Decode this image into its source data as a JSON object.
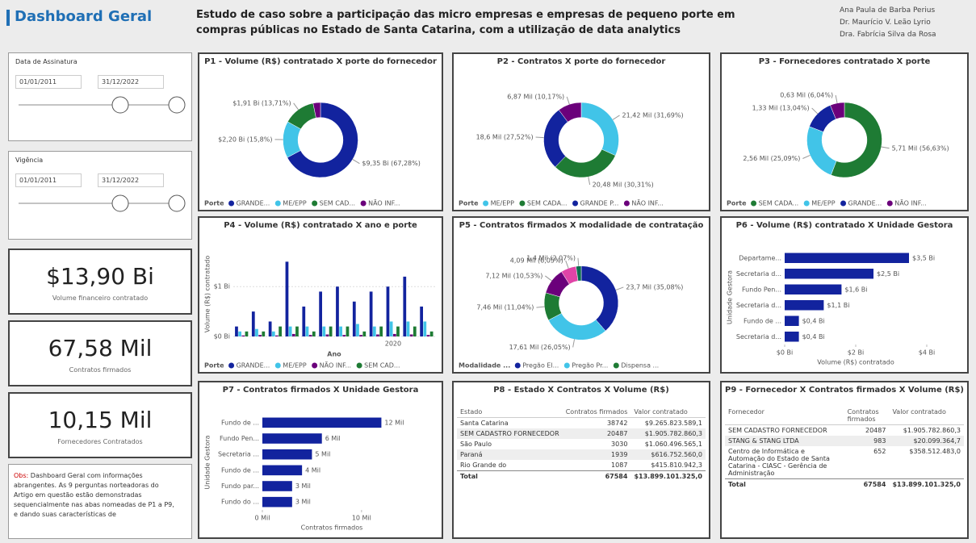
{
  "header": {
    "title": "Dashboard Geral",
    "subtitle": "Estudo de caso sobre a participação das micro empresas e empresas de pequeno porte em compras públicas no Estado de Santa Catarina, com a utilização de data analytics",
    "authors": [
      "Ana Paula de Barba Perius",
      "Dr. Maurício V. Leão Lyrio",
      "Dra. Fabrícia Silva da Rosa"
    ]
  },
  "slicers": [
    {
      "label": "Data de Assinatura",
      "from": "01/01/2011",
      "to": "31/12/2022"
    },
    {
      "label": "Vigência",
      "from": "01/01/2011",
      "to": "31/12/2022"
    }
  ],
  "cards": [
    {
      "value": "$13,90 Bi",
      "label": "Volume financeiro contratado"
    },
    {
      "value": "67,58 Mil",
      "label": "Contratos firmados"
    },
    {
      "value": "10,15 Mil",
      "label": "Fornecedores Contratados"
    }
  ],
  "note": {
    "label": "Obs:",
    "text": "Dashboard Geral com informações abrangentes. As 9 perguntas norteadoras do Artigo em questão estão demonstradas sequencialmente nas abas nomeadas de P1 a P9, e dando suas características de"
  },
  "chart_data": [
    {
      "type": "donut",
      "title": "P1 - Volume (R$) contratado X porte do fornecedor",
      "legend_title": "Porte",
      "categories": [
        "GRANDE...",
        "ME/EPP",
        "SEM CAD...",
        "NÃO INF..."
      ],
      "colors": [
        "#12239e",
        "#41c4e8",
        "#1e7b34",
        "#6b007b"
      ],
      "values": [
        9.35,
        2.2,
        1.91,
        0.44
      ],
      "value_labels": [
        "$9,35 Bi (67,28%)",
        "$2,20 Bi (15,8%)",
        "$1,91 Bi (13,71%)",
        null
      ]
    },
    {
      "type": "donut",
      "title": "P2 - Contratos X porte do fornecedor",
      "legend_title": "Porte",
      "categories": [
        "ME/EPP",
        "SEM CADA...",
        "GRANDE P...",
        "NÃO INF..."
      ],
      "colors": [
        "#41c4e8",
        "#1e7b34",
        "#12239e",
        "#6b007b"
      ],
      "values": [
        21.42,
        20.48,
        18.6,
        6.87
      ],
      "value_labels": [
        "21,42 Mil (31,69%)",
        "20,48 Mil (30,31%)",
        "18,6 Mil (27,52%)",
        "6,87 Mil (10,17%)"
      ]
    },
    {
      "type": "donut",
      "title": "P3 - Fornecedores contratado X porte",
      "legend_title": "Porte",
      "categories": [
        "SEM CADA...",
        "ME/EPP",
        "GRANDE...",
        "NÃO INF..."
      ],
      "colors": [
        "#1e7b34",
        "#41c4e8",
        "#12239e",
        "#6b007b"
      ],
      "values": [
        5.71,
        2.56,
        1.33,
        0.63
      ],
      "value_labels": [
        "5,71 Mil (56,63%)",
        "2,56 Mil (25,09%)",
        "1,33 Mil (13,04%)",
        "0,63 Mil (6,04%)"
      ]
    },
    {
      "type": "bar",
      "title": "P4 - Volume (R$) contratado X ano e porte",
      "legend_title": "Porte",
      "x_label": "Ano",
      "y_label": "Volume (R$) contratado",
      "categories": [
        null,
        null,
        null,
        null,
        null,
        null,
        null,
        null,
        null,
        "2020",
        null,
        null
      ],
      "ylim": [
        0,
        1.7
      ],
      "yticks": [
        {
          "value": 0,
          "label": "$0 Bi"
        },
        {
          "value": 1,
          "label": "$1 Bi"
        }
      ],
      "grid": true,
      "series": [
        {
          "name": "GRANDE...",
          "color": "#12239e",
          "values": [
            0.2,
            0.5,
            0.3,
            1.5,
            0.6,
            0.9,
            1.0,
            0.7,
            0.9,
            1.0,
            1.2,
            0.6
          ]
        },
        {
          "name": "ME/EPP",
          "color": "#41c4e8",
          "values": [
            0.1,
            0.15,
            0.1,
            0.2,
            0.2,
            0.2,
            0.2,
            0.25,
            0.2,
            0.3,
            0.3,
            0.3
          ]
        },
        {
          "name": "NÃO INF...",
          "color": "#6b007b",
          "values": [
            0.02,
            0.03,
            0.02,
            0.05,
            0.03,
            0.04,
            0.03,
            0.03,
            0.04,
            0.05,
            0.04,
            0.03
          ]
        },
        {
          "name": "SEM CAD...",
          "color": "#1e7b34",
          "values": [
            0.1,
            0.1,
            0.2,
            0.2,
            0.1,
            0.2,
            0.2,
            0.1,
            0.2,
            0.2,
            0.2,
            0.1
          ]
        }
      ]
    },
    {
      "type": "donut",
      "title": "P5 - Contratos firmados X modalidade de contratação",
      "legend_title": "Modalidade ...",
      "categories": [
        "Pregão El...",
        "Pregão Pr...",
        "Dispensa ...",
        null,
        null,
        null
      ],
      "colors": [
        "#12239e",
        "#41c4e8",
        "#1e7b34",
        "#6b007b",
        "#e044a7",
        "#0b6e4f"
      ],
      "values": [
        23.7,
        17.61,
        7.46,
        7.12,
        4.09,
        1.4
      ],
      "value_labels": [
        "23,7 Mil (35,08%)",
        "17,61 Mil (26,05%)",
        "7,46 Mil (11,04%)",
        "7,12 Mil (10,53%)",
        "4,09 Mil (6,05%)",
        "1,4 Mil (2,07%)"
      ]
    },
    {
      "type": "hbar",
      "title": "P6 - Volume (R$) contratado X Unidade Gestora",
      "x_label": "Volume (R$) contratado",
      "y_label": "Unidade Gestora",
      "color": "#12239e",
      "categories": [
        "Departame...",
        "Secretaria d...",
        "Fundo Pen...",
        "Secretaria d...",
        "Fundo de ...",
        "Secretaria d..."
      ],
      "values": [
        3.5,
        2.5,
        1.6,
        1.1,
        0.4,
        0.4
      ],
      "value_labels": [
        "$3,5 Bi",
        "$2,5 Bi",
        "$1,6 Bi",
        "$1,1 Bi",
        "$0,4 Bi",
        "$0,4 Bi"
      ],
      "xlim": [
        0,
        4
      ],
      "xticks": [
        {
          "value": 0,
          "label": "$0 Bi"
        },
        {
          "value": 2,
          "label": "$2 Bi"
        },
        {
          "value": 4,
          "label": "$4 Bi"
        }
      ]
    },
    {
      "type": "hbar",
      "title": "P7 - Contratos firmados X Unidade Gestora",
      "x_label": "Contratos firmados",
      "y_label": "Unidade Gestora",
      "color": "#12239e",
      "categories": [
        "Fundo de ...",
        "Fundo Pen...",
        "Secretaria ...",
        "Fundo de ...",
        "Fundo par...",
        "Fundo do ..."
      ],
      "values": [
        12,
        6,
        5,
        4,
        3,
        3
      ],
      "value_labels": [
        "12 Mil",
        "6 Mil",
        "5 Mil",
        "4 Mil",
        "3 Mil",
        "3 Mil"
      ],
      "xlim": [
        0,
        14
      ],
      "xticks": [
        {
          "value": 0,
          "label": "0 Mil"
        },
        {
          "value": 10,
          "label": "10 Mil"
        }
      ]
    }
  ],
  "tables": [
    {
      "title": "P8 - Estado X Contratos X Volume (R$)",
      "columns": [
        "Estado",
        "Contratos firmados",
        "Valor contratado"
      ],
      "rows": [
        [
          "Santa Catarina",
          38742,
          "$9.265.823.589,1"
        ],
        [
          "SEM CADASTRO FORNECEDOR",
          20487,
          "$1.905.782.860,3"
        ],
        [
          "São Paulo",
          3030,
          "$1.060.496.565,1"
        ],
        [
          "Paraná",
          1939,
          "$616.752.560,0"
        ],
        [
          "Rio Grande do",
          1087,
          "$415.810.942,3"
        ]
      ],
      "total": [
        "Total",
        67584,
        "$13.899.101.325,0"
      ]
    },
    {
      "title": "P9 - Fornecedor X Contratos firmados X Volume (R$)",
      "columns": [
        "Fornecedor",
        "Contratos firmados",
        "Valor contratado"
      ],
      "rows": [
        [
          "SEM CADASTRO FORNECEDOR",
          20487,
          "$1.905.782.860,3"
        ],
        [
          "STANG & STANG LTDA",
          983,
          "$20.099.364,7"
        ],
        [
          "Centro de Informática e Automação do Estado de Santa Catarina - CIASC - Gerência de Administração",
          652,
          "$358.512.483,0"
        ]
      ],
      "total": [
        "Total",
        67584,
        "$13.899.101.325,0"
      ]
    }
  ]
}
